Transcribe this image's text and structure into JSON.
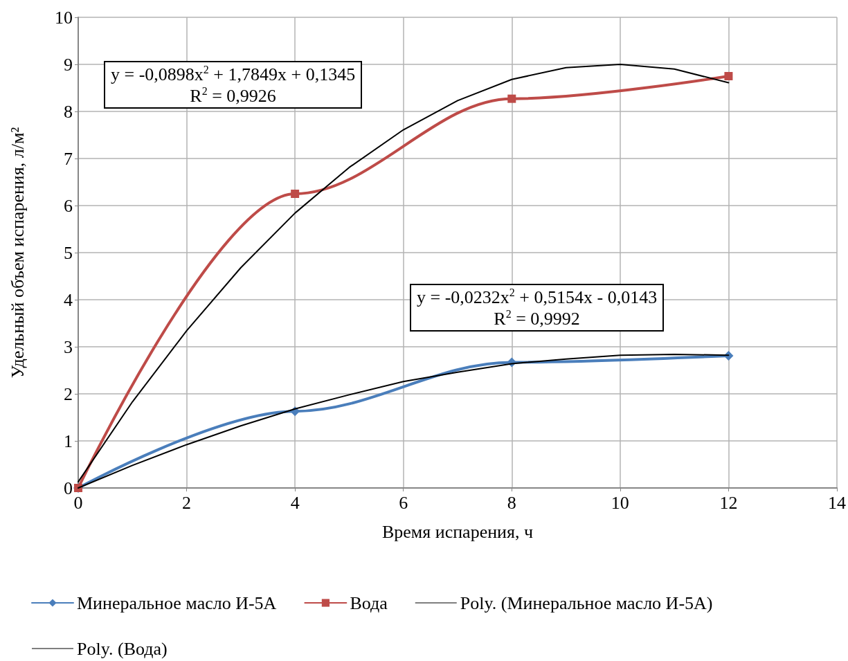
{
  "chart_data": {
    "type": "line",
    "xlabel": "Время испарения, ч",
    "ylabel": "Удельный объем испарения, л/м²",
    "xlim": [
      0,
      14
    ],
    "xticks": [
      0,
      2,
      4,
      6,
      8,
      10,
      12,
      14
    ],
    "ylim": [
      0,
      10
    ],
    "yticks": [
      0,
      1,
      2,
      3,
      4,
      5,
      6,
      7,
      8,
      9,
      10
    ],
    "grid": true,
    "legend": "bottom",
    "series": [
      {
        "name": "Минеральное масло И-5А",
        "color": "#4a7ebb",
        "marker": "diamond",
        "x": [
          0,
          4,
          8,
          12
        ],
        "values": [
          0,
          1.63,
          2.67,
          2.81
        ]
      },
      {
        "name": "Вода",
        "color": "#be4b48",
        "marker": "square",
        "x": [
          0,
          4,
          8,
          12
        ],
        "values": [
          0,
          6.25,
          8.27,
          8.75
        ]
      },
      {
        "name": "Poly. (Минеральное масло И-5А)",
        "color": "#000000",
        "marker": "none",
        "x": [
          0,
          1,
          2,
          3,
          4,
          5,
          6,
          7,
          8,
          9,
          10,
          11,
          12
        ],
        "values": [
          0,
          0.48,
          0.92,
          1.32,
          1.68,
          1.98,
          2.26,
          2.46,
          2.64,
          2.74,
          2.82,
          2.84,
          2.82
        ]
      },
      {
        "name": "Poly. (Вода)",
        "color": "#000000",
        "marker": "none",
        "x": [
          0,
          1,
          2,
          3,
          4,
          5,
          6,
          7,
          8,
          9,
          10,
          11,
          12
        ],
        "values": [
          0.13,
          1.83,
          3.34,
          4.68,
          5.84,
          6.81,
          7.61,
          8.23,
          8.68,
          8.93,
          9.0,
          8.9,
          8.61
        ]
      }
    ],
    "annotations": [
      "y = -0,0898x$^{2}$ + 1,7849x + 0,1345\nR$^{2}$ = 0,9926",
      "y = -0,0232x$^{2}$ + 0,5154x - 0,0143\nR$^{2}$ = 0,9992"
    ]
  }
}
